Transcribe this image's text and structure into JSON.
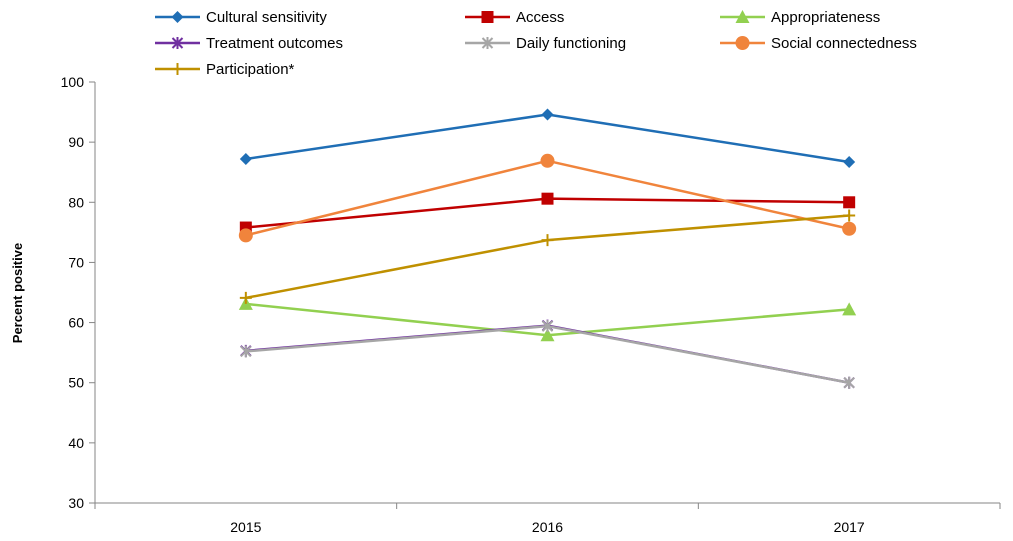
{
  "chart_data": {
    "type": "line",
    "title": "",
    "xlabel": "",
    "ylabel": "Percent positive",
    "categories": [
      "2015",
      "2016",
      "2017"
    ],
    "ylim": [
      30,
      100
    ],
    "yticks": [
      30,
      40,
      50,
      60,
      70,
      80,
      90,
      100
    ],
    "grid": false,
    "legend_position": "top",
    "series": [
      {
        "name": "Cultural sensitivity",
        "values": [
          87.2,
          94.6,
          86.7
        ],
        "color": "#1f6eb5",
        "marker": "diamond"
      },
      {
        "name": "Access",
        "values": [
          75.8,
          80.6,
          80.0
        ],
        "color": "#c00000",
        "marker": "square"
      },
      {
        "name": "Appropriateness",
        "values": [
          63.1,
          57.9,
          62.2
        ],
        "color": "#92d050",
        "marker": "triangle"
      },
      {
        "name": "Treatment outcomes",
        "values": [
          55.3,
          59.5,
          50.0
        ],
        "color": "#7030a0",
        "marker": "x"
      },
      {
        "name": "Daily functioning",
        "values": [
          55.2,
          59.4,
          50.0
        ],
        "color": "#a6a6a6",
        "marker": "x"
      },
      {
        "name": "Social connectedness",
        "values": [
          74.5,
          86.9,
          75.6
        ],
        "color": "#f0843c",
        "marker": "circle"
      },
      {
        "name": "Participation*",
        "values": [
          64.1,
          73.7,
          77.8
        ],
        "color": "#bf9000",
        "marker": "plus"
      }
    ]
  }
}
